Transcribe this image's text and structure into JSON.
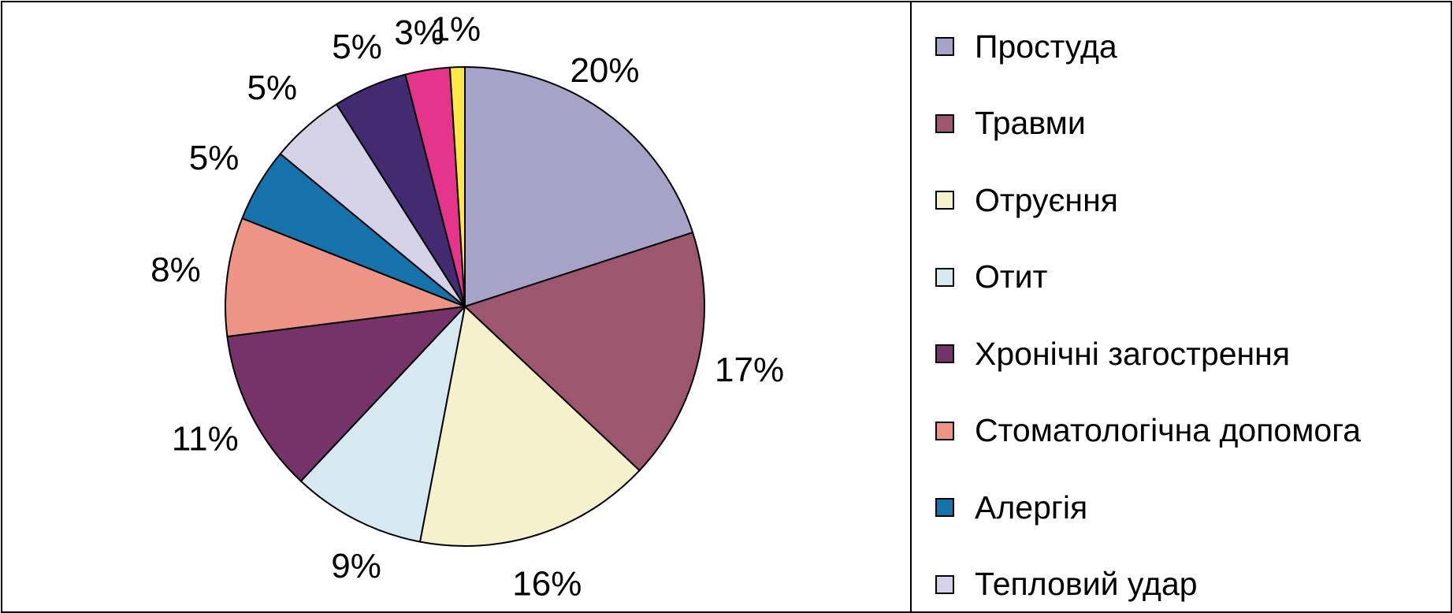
{
  "chart_data": {
    "type": "pie",
    "categories": [
      "Простуда",
      "Травми",
      "Отруєння",
      "Отит",
      "Хронічні загострення",
      "Стоматологічна допомога",
      "Алергія",
      "Тепловий удар",
      "",
      "",
      ""
    ],
    "values": [
      20,
      17,
      16,
      9,
      11,
      8,
      5,
      5,
      5,
      3,
      1
    ],
    "labels": [
      "20%",
      "17%",
      "16%",
      "9%",
      "11%",
      "8%",
      "5%",
      "5%",
      "5%",
      "3%",
      "1%"
    ],
    "colors": [
      "#a7a2c8",
      "#9c566d",
      "#f4f1cc",
      "#d6e9f1",
      "#76336a",
      "#ed9487",
      "#1572ab",
      "#d5d2e8",
      "#432b72",
      "#e5348b",
      "#fde847"
    ],
    "start": "12 o'clock, clockwise",
    "legend_position": "right",
    "legend": [
      {
        "label": "Простуда",
        "color": "#a7a2c8"
      },
      {
        "label": "Травми",
        "color": "#9c566d"
      },
      {
        "label": "Отруєння",
        "color": "#f4f1cc"
      },
      {
        "label": "Отит",
        "color": "#d6e9f1"
      },
      {
        "label": "Хронічні загострення",
        "color": "#76336a"
      },
      {
        "label": "Стоматологічна допомога",
        "color": "#ed9487"
      },
      {
        "label": "Алергія",
        "color": "#1572ab"
      },
      {
        "label": "Тепловий удар",
        "color": "#d5d2e8"
      }
    ]
  }
}
